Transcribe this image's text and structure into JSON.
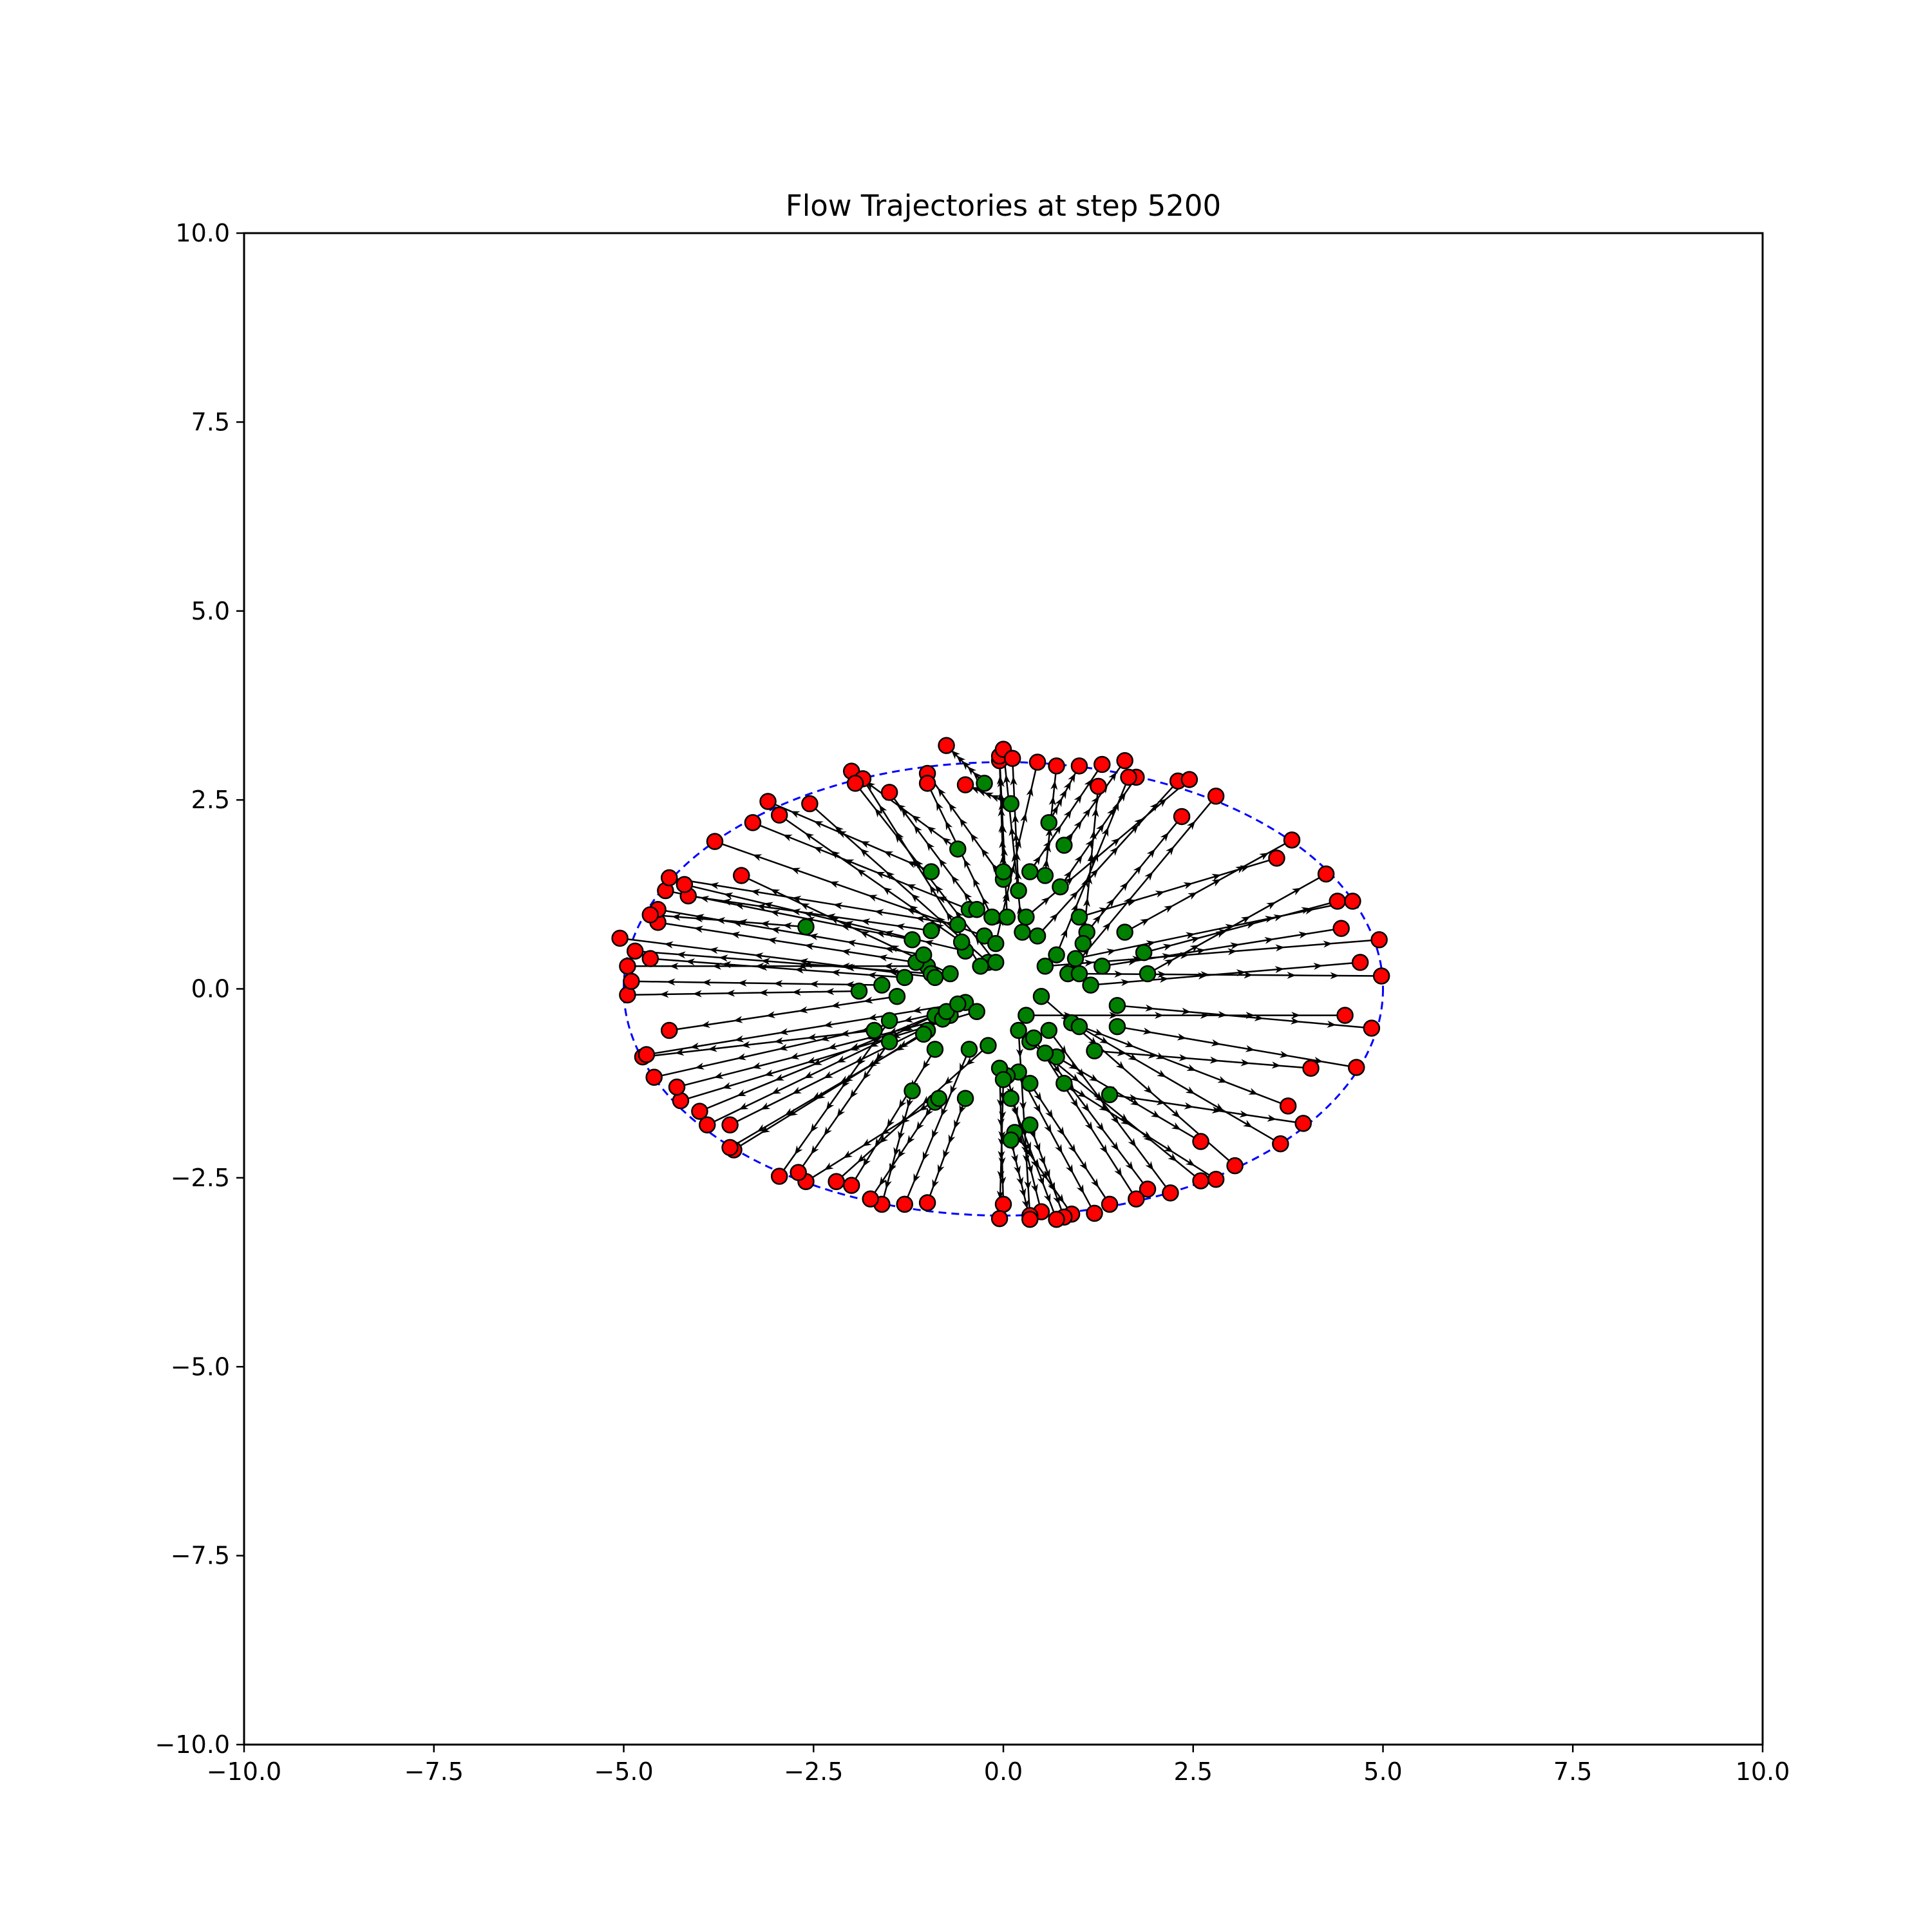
{
  "chart_data": {
    "type": "scatter",
    "title": "Flow Trajectories at step 5200",
    "xlabel": "",
    "ylabel": "",
    "xlim": [
      -10,
      10
    ],
    "ylim": [
      -10,
      10
    ],
    "xticks": [
      -10,
      -7.5,
      -5,
      -2.5,
      0,
      2.5,
      5,
      7.5,
      10
    ],
    "yticks": [
      -10,
      -7.5,
      -5,
      -2.5,
      0,
      2.5,
      5,
      7.5,
      10
    ],
    "xtick_labels": [
      "−10.0",
      "−7.5",
      "−5.0",
      "−2.5",
      "0.0",
      "2.5",
      "5.0",
      "7.5",
      "10.0"
    ],
    "ytick_labels": [
      "−10.0",
      "−7.5",
      "−5.0",
      "−2.5",
      "0.0",
      "2.5",
      "5.0",
      "7.5",
      "10.0"
    ],
    "grid": false,
    "target_ellipse": {
      "cx": 0,
      "cy": 0,
      "rx": 5,
      "ry": 3,
      "color": "#0000ff",
      "style": "dashed"
    },
    "colors": {
      "start": "#008000",
      "end": "#ff0000",
      "arrow": "#000000"
    },
    "trajectories": [
      {
        "start": [
          0.35,
          1.55
        ],
        "end": [
          1.3,
          2.97
        ]
      },
      {
        "start": [
          0.6,
          2.2
        ],
        "end": [
          1.0,
          2.95
        ]
      },
      {
        "start": [
          0.8,
          1.9
        ],
        "end": [
          1.6,
          3.02
        ]
      },
      {
        "start": [
          0.75,
          1.35
        ],
        "end": [
          1.75,
          2.8
        ]
      },
      {
        "start": [
          0.45,
          0.7
        ],
        "end": [
          2.3,
          2.75
        ]
      },
      {
        "start": [
          0.3,
          0.95
        ],
        "end": [
          2.45,
          2.77
        ]
      },
      {
        "start": [
          0.85,
          0.2
        ],
        "end": [
          2.8,
          2.55
        ]
      },
      {
        "start": [
          1.1,
          0.75
        ],
        "end": [
          2.35,
          2.28
        ]
      },
      {
        "start": [
          1.0,
          0.95
        ],
        "end": [
          3.6,
          1.73
        ]
      },
      {
        "start": [
          1.6,
          0.75
        ],
        "end": [
          3.8,
          1.97
        ]
      },
      {
        "start": [
          1.9,
          0.2
        ],
        "end": [
          4.25,
          1.52
        ]
      },
      {
        "start": [
          1.85,
          0.48
        ],
        "end": [
          4.4,
          1.16
        ]
      },
      {
        "start": [
          0.95,
          0.4
        ],
        "end": [
          4.6,
          1.16
        ]
      },
      {
        "start": [
          1.3,
          0.3
        ],
        "end": [
          4.45,
          0.8
        ]
      },
      {
        "start": [
          0.55,
          0.3
        ],
        "end": [
          4.95,
          0.65
        ]
      },
      {
        "start": [
          1.0,
          0.2
        ],
        "end": [
          4.98,
          0.17
        ]
      },
      {
        "start": [
          1.5,
          -0.22
        ],
        "end": [
          4.85,
          -0.52
        ]
      },
      {
        "start": [
          1.5,
          -0.5
        ],
        "end": [
          4.65,
          -1.04
        ]
      },
      {
        "start": [
          1.2,
          -0.82
        ],
        "end": [
          4.05,
          -1.05
        ]
      },
      {
        "start": [
          0.9,
          -0.45
        ],
        "end": [
          3.75,
          -1.55
        ]
      },
      {
        "start": [
          1.4,
          -1.4
        ],
        "end": [
          3.95,
          -1.78
        ]
      },
      {
        "start": [
          1.0,
          -0.5
        ],
        "end": [
          3.65,
          -2.05
        ]
      },
      {
        "start": [
          0.5,
          -0.1
        ],
        "end": [
          3.05,
          -2.34
        ]
      },
      {
        "start": [
          0.7,
          -0.9
        ],
        "end": [
          2.6,
          -2.02
        ]
      },
      {
        "start": [
          0.8,
          -1.25
        ],
        "end": [
          2.8,
          -2.52
        ]
      },
      {
        "start": [
          0.35,
          -0.7
        ],
        "end": [
          2.6,
          -2.54
        ]
      },
      {
        "start": [
          0.55,
          -0.85
        ],
        "end": [
          1.9,
          -2.65
        ]
      },
      {
        "start": [
          0.4,
          -0.65
        ],
        "end": [
          1.75,
          -2.78
        ]
      },
      {
        "start": [
          0.35,
          -1.25
        ],
        "end": [
          1.4,
          -2.85
        ]
      },
      {
        "start": [
          0.2,
          -1.1
        ],
        "end": [
          1.2,
          -2.97
        ]
      },
      {
        "start": [
          0.15,
          -1.9
        ],
        "end": [
          0.9,
          -2.98
        ]
      },
      {
        "start": [
          0.35,
          -1.8
        ],
        "end": [
          0.8,
          -3.02
        ]
      },
      {
        "start": [
          0.1,
          -1.45
        ],
        "end": [
          0.7,
          -3.05
        ]
      },
      {
        "start": [
          0.05,
          -1.15
        ],
        "end": [
          0.5,
          -2.95
        ]
      },
      {
        "start": [
          0.2,
          -0.55
        ],
        "end": [
          0.35,
          -3.0
        ]
      },
      {
        "start": [
          0.1,
          -2.0
        ],
        "end": [
          0.35,
          -3.05
        ]
      },
      {
        "start": [
          -0.05,
          -1.05
        ],
        "end": [
          0.0,
          -2.85
        ]
      },
      {
        "start": [
          0.0,
          -1.2
        ],
        "end": [
          -0.05,
          -3.04
        ]
      },
      {
        "start": [
          -0.5,
          -1.45
        ],
        "end": [
          -1.0,
          -2.83
        ]
      },
      {
        "start": [
          -0.45,
          -0.8
        ],
        "end": [
          -1.3,
          -2.85
        ]
      },
      {
        "start": [
          -1.2,
          -1.35
        ],
        "end": [
          -1.6,
          -2.85
        ]
      },
      {
        "start": [
          -0.9,
          -1.5
        ],
        "end": [
          -1.75,
          -2.78
        ]
      },
      {
        "start": [
          -0.9,
          -0.8
        ],
        "end": [
          -2.0,
          -2.6
        ]
      },
      {
        "start": [
          -0.85,
          -1.45
        ],
        "end": [
          -2.6,
          -2.55
        ]
      },
      {
        "start": [
          -1.5,
          -0.7
        ],
        "end": [
          -2.7,
          -2.43
        ]
      },
      {
        "start": [
          -1.5,
          -0.42
        ],
        "end": [
          -2.95,
          -2.48
        ]
      },
      {
        "start": [
          -1.0,
          -0.55
        ],
        "end": [
          -3.55,
          -2.13
        ]
      },
      {
        "start": [
          -1.05,
          -0.6
        ],
        "end": [
          -3.6,
          -2.1
        ]
      },
      {
        "start": [
          -0.7,
          -0.35
        ],
        "end": [
          -3.6,
          -1.8
        ]
      },
      {
        "start": [
          -0.9,
          -0.35
        ],
        "end": [
          -3.9,
          -1.8
        ]
      },
      {
        "start": [
          -0.5,
          -0.18
        ],
        "end": [
          -4.0,
          -1.62
        ]
      },
      {
        "start": [
          -0.35,
          -0.3
        ],
        "end": [
          -4.25,
          -1.48
        ]
      },
      {
        "start": [
          -0.8,
          -0.4
        ],
        "end": [
          -4.3,
          -1.3
        ]
      },
      {
        "start": [
          -0.75,
          -0.3
        ],
        "end": [
          -4.6,
          -1.17
        ]
      },
      {
        "start": [
          -1.7,
          -0.55
        ],
        "end": [
          -4.75,
          -0.9
        ]
      },
      {
        "start": [
          -0.6,
          -0.2
        ],
        "end": [
          -4.7,
          -0.87
        ]
      },
      {
        "start": [
          -1.9,
          -0.03
        ],
        "end": [
          -4.95,
          -0.08
        ]
      },
      {
        "start": [
          -1.6,
          0.05
        ],
        "end": [
          -4.9,
          0.1
        ]
      },
      {
        "start": [
          -1.0,
          0.3
        ],
        "end": [
          -4.95,
          0.3
        ]
      },
      {
        "start": [
          -0.95,
          0.2
        ],
        "end": [
          -4.85,
          0.5
        ]
      },
      {
        "start": [
          -0.9,
          0.15
        ],
        "end": [
          -5.05,
          0.67
        ]
      },
      {
        "start": [
          -1.15,
          0.35
        ],
        "end": [
          -4.55,
          0.88
        ]
      },
      {
        "start": [
          -1.05,
          0.45
        ],
        "end": [
          -4.55,
          1.05
        ]
      },
      {
        "start": [
          -2.6,
          0.82
        ],
        "end": [
          -4.65,
          0.98
        ]
      },
      {
        "start": [
          -1.2,
          0.65
        ],
        "end": [
          -4.45,
          1.3
        ]
      },
      {
        "start": [
          -0.95,
          0.77
        ],
        "end": [
          -4.15,
          1.23
        ]
      },
      {
        "start": [
          -0.5,
          0.5
        ],
        "end": [
          -4.2,
          1.38
        ]
      },
      {
        "start": [
          -0.6,
          0.85
        ],
        "end": [
          -4.4,
          1.47
        ]
      },
      {
        "start": [
          -0.25,
          0.7
        ],
        "end": [
          -3.8,
          1.95
        ]
      },
      {
        "start": [
          -0.45,
          1.05
        ],
        "end": [
          -3.3,
          2.2
        ]
      },
      {
        "start": [
          -0.55,
          0.62
        ],
        "end": [
          -2.95,
          2.3
        ]
      },
      {
        "start": [
          -0.95,
          1.55
        ],
        "end": [
          -3.1,
          2.48
        ]
      },
      {
        "start": [
          -0.2,
          0.35
        ],
        "end": [
          -2.55,
          2.45
        ]
      },
      {
        "start": [
          -0.6,
          1.85
        ],
        "end": [
          -2.0,
          2.88
        ]
      },
      {
        "start": [
          -0.3,
          0.3
        ],
        "end": [
          -1.85,
          2.78
        ]
      },
      {
        "start": [
          -0.1,
          0.35
        ],
        "end": [
          -1.95,
          2.72
        ]
      },
      {
        "start": [
          -0.35,
          1.05
        ],
        "end": [
          -1.5,
          2.6
        ]
      },
      {
        "start": [
          0.0,
          1.45
        ],
        "end": [
          -1.0,
          2.85
        ]
      },
      {
        "start": [
          -0.15,
          0.95
        ],
        "end": [
          -1.0,
          2.72
        ]
      },
      {
        "start": [
          -0.25,
          2.72
        ],
        "end": [
          -0.75,
          3.22
        ]
      },
      {
        "start": [
          0.1,
          2.45
        ],
        "end": [
          -0.5,
          2.7
        ]
      },
      {
        "start": [
          0.0,
          1.55
        ],
        "end": [
          -0.05,
          3.02
        ]
      },
      {
        "start": [
          0.05,
          0.95
        ],
        "end": [
          -0.05,
          3.08
        ]
      },
      {
        "start": [
          0.25,
          0.75
        ],
        "end": [
          0.0,
          3.17
        ]
      },
      {
        "start": [
          0.2,
          1.3
        ],
        "end": [
          0.12,
          3.05
        ]
      },
      {
        "start": [
          0.55,
          1.5
        ],
        "end": [
          0.7,
          2.95
        ]
      },
      {
        "start": [
          1.05,
          0.6
        ],
        "end": [
          1.25,
          2.68
        ]
      },
      {
        "start": [
          0.7,
          0.45
        ],
        "end": [
          1.65,
          2.8
        ]
      },
      {
        "start": [
          -0.7,
          0.2
        ],
        "end": [
          -3.45,
          1.5
        ]
      },
      {
        "start": [
          -1.3,
          0.15
        ],
        "end": [
          -4.65,
          0.4
        ]
      },
      {
        "start": [
          -1.4,
          -0.1
        ],
        "end": [
          -4.4,
          -0.55
        ]
      },
      {
        "start": [
          0.3,
          -0.35
        ],
        "end": [
          4.5,
          -0.35
        ]
      },
      {
        "start": [
          1.15,
          0.05
        ],
        "end": [
          4.7,
          0.35
        ]
      },
      {
        "start": [
          -0.2,
          -0.75
        ],
        "end": [
          -2.2,
          -2.55
        ]
      },
      {
        "start": [
          0.6,
          -0.55
        ],
        "end": [
          2.2,
          -2.7
        ]
      },
      {
        "start": [
          -0.1,
          0.6
        ],
        "end": [
          0.45,
          3.0
        ]
      }
    ]
  }
}
